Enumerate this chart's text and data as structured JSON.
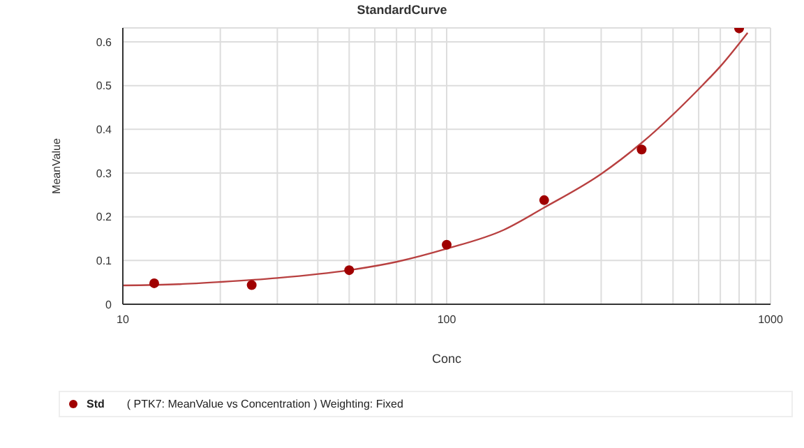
{
  "chart_data": {
    "type": "scatter",
    "title": "StandardCurve",
    "xlabel": "Conc",
    "ylabel": "MeanValue",
    "log": "x",
    "grid": true,
    "legend": "bottom",
    "xlim": [
      10,
      1000
    ],
    "ylim": [
      0,
      0.632
    ],
    "xticks": [
      10,
      {
        "value": 20,
        "label": null
      },
      {
        "value": 30,
        "label": null
      },
      {
        "value": 40,
        "label": null
      },
      {
        "value": 50,
        "label": null
      },
      {
        "value": 60,
        "label": null
      },
      {
        "value": 70,
        "label": null
      },
      {
        "value": 80,
        "label": null
      },
      {
        "value": 90,
        "label": null
      },
      100,
      {
        "value": 200,
        "label": null
      },
      {
        "value": 300,
        "label": null
      },
      {
        "value": 400,
        "label": null
      },
      {
        "value": 500,
        "label": null
      },
      {
        "value": 600,
        "label": null
      },
      {
        "value": 700,
        "label": null
      },
      {
        "value": 800,
        "label": null
      },
      {
        "value": 900,
        "label": null
      },
      1000
    ],
    "yticks": [
      0,
      0.1,
      0.2,
      0.3,
      0.4,
      0.5,
      0.6
    ],
    "annotations": [
      "( PTK7: MeanValue vs Concentration )  Weighting: Fixed"
    ],
    "series": [
      {
        "name": "Std",
        "marker": "circle",
        "color": "#a00000",
        "x": [
          12.5,
          25,
          50,
          100,
          200,
          400,
          800
        ],
        "values": [
          0.048,
          0.044,
          0.078,
          0.136,
          0.238,
          0.354,
          0.631
        ]
      },
      {
        "type": "line",
        "marker": "none",
        "line_style": "solid",
        "color": "#b84040",
        "x": [
          10,
          15,
          20,
          30,
          50,
          70,
          100,
          150,
          200,
          300,
          400,
          600,
          700,
          850
        ],
        "values": [
          0.043,
          0.046,
          0.051,
          0.06,
          0.078,
          0.097,
          0.127,
          0.17,
          0.221,
          0.298,
          0.369,
          0.492,
          0.544,
          0.621
        ]
      }
    ]
  }
}
